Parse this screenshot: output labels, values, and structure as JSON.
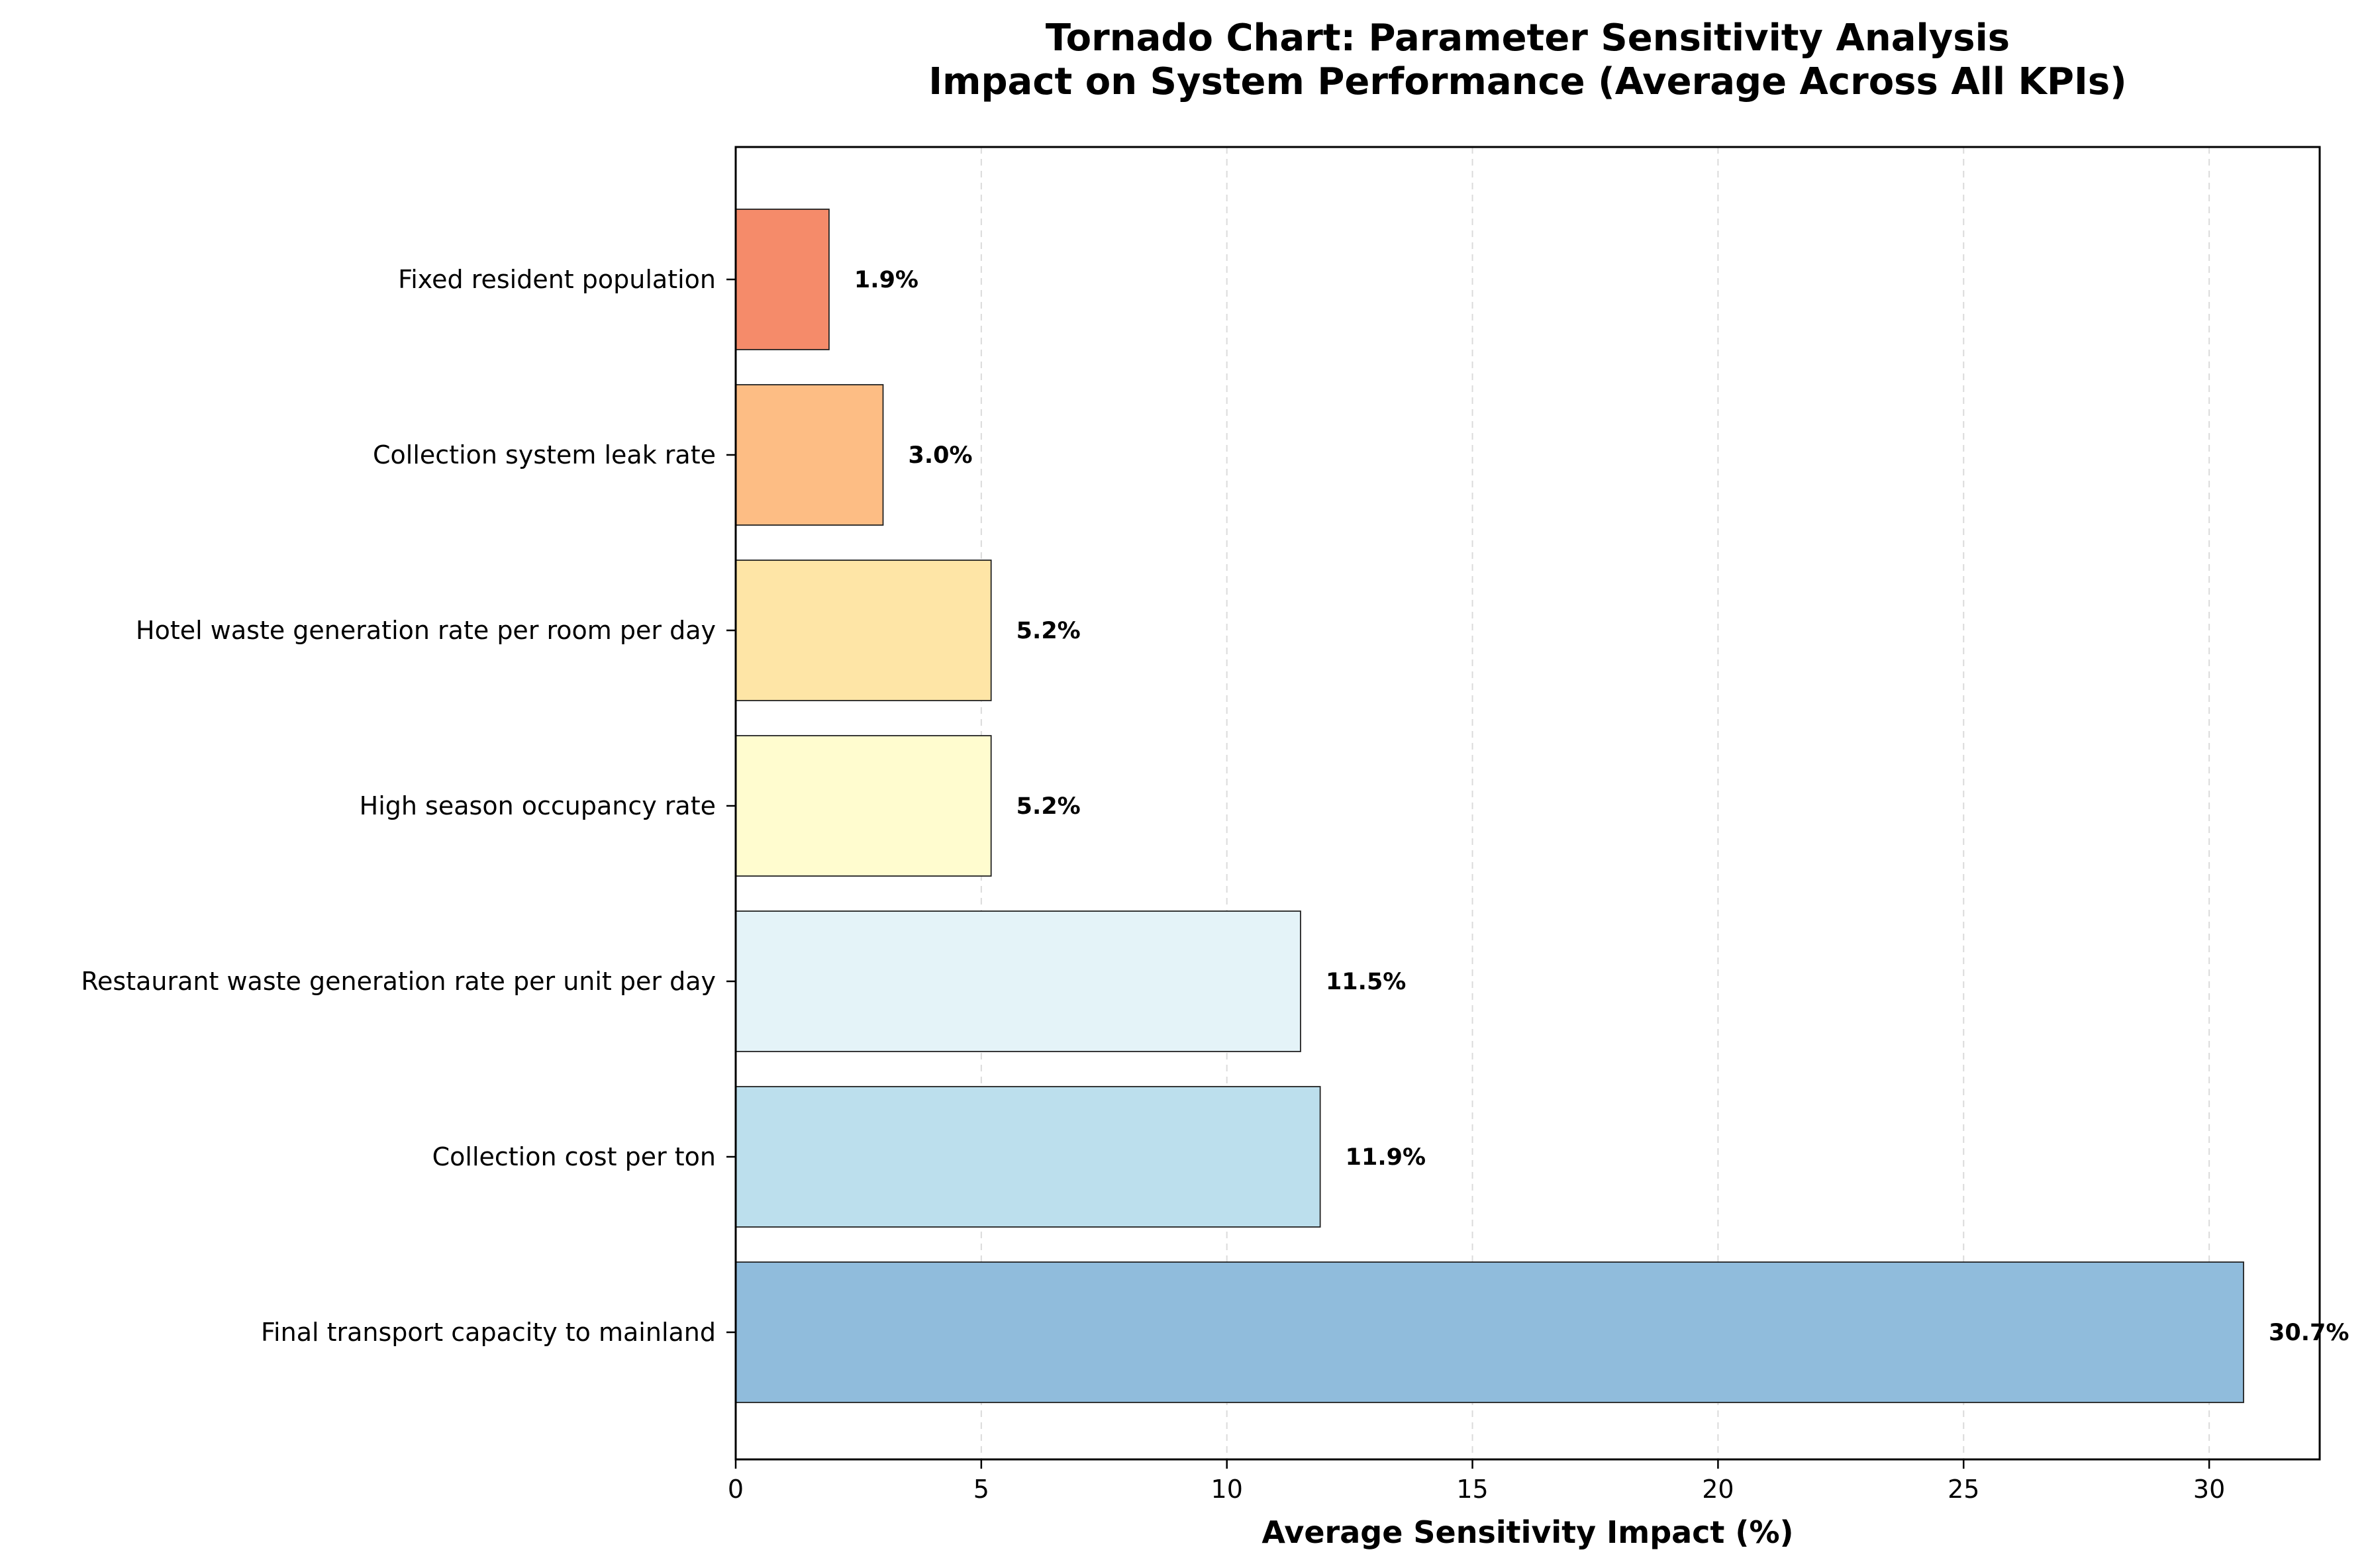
{
  "chart_data": {
    "type": "bar",
    "orientation": "horizontal",
    "title": [
      "Tornado Chart: Parameter Sensitivity Analysis",
      "Impact on System Performance (Average Across All KPIs)"
    ],
    "xlabel": "Average Sensitivity Impact (%)",
    "ylabel": "",
    "xlim": [
      0,
      32.25
    ],
    "xticks": [
      0,
      5,
      10,
      15,
      20,
      25,
      30
    ],
    "grid": "x-dashed",
    "categories": [
      "Fixed resident population",
      "Collection system leak rate",
      "Hotel waste generation rate per room per day",
      "High season occupancy rate",
      "Restaurant waste generation rate per unit per day",
      "Collection cost per ton",
      "Final transport capacity to mainland"
    ],
    "values": [
      1.9,
      3.0,
      5.2,
      5.2,
      11.5,
      11.9,
      30.7
    ],
    "value_labels": [
      "1.9%",
      "3.0%",
      "5.2%",
      "5.2%",
      "11.5%",
      "11.9%",
      "30.7%"
    ],
    "colors": [
      "#f58b6a",
      "#fdbd84",
      "#fee5a6",
      "#fffccf",
      "#e4f3f8",
      "#bcdfed",
      "#90bcdc"
    ]
  }
}
